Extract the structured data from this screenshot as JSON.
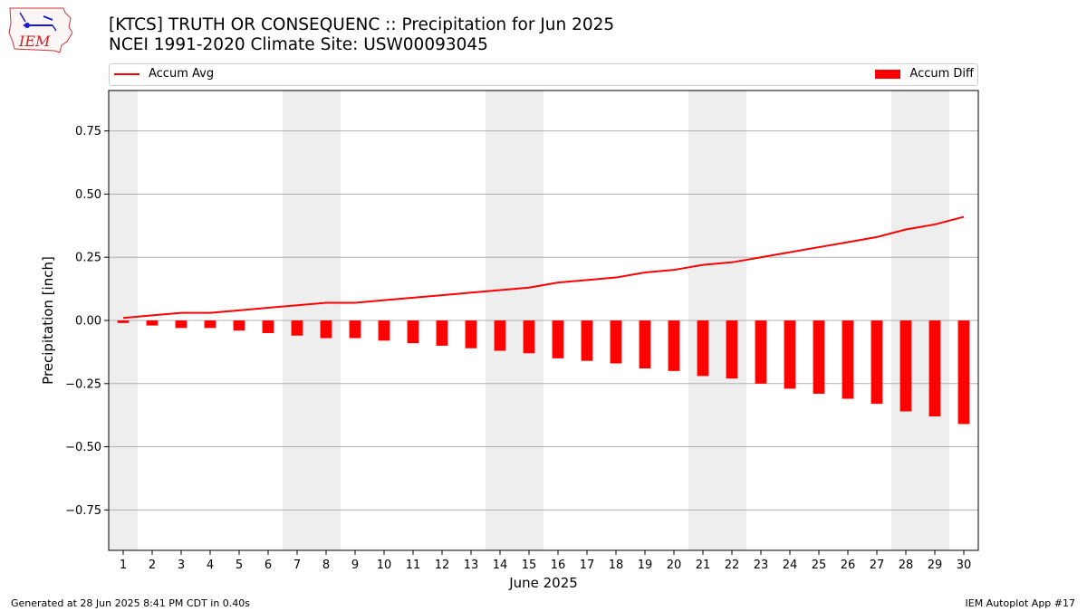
{
  "title": {
    "line1": "[KTCS] TRUTH OR CONSEQUENC :: Precipitation for Jun 2025",
    "line2": "NCEI 1991-2020 Climate Site: USW00093045"
  },
  "logo": {
    "text": "IEM",
    "icon": "iowa-state-outline-logo"
  },
  "footer": {
    "left": "Generated at 28 Jun 2025 8:41 PM CDT in 0.40s",
    "right": "IEM Autoplot App #17"
  },
  "chart_data": {
    "type": "bar",
    "xlabel": "June 2025",
    "ylabel": "Precipitation [inch]",
    "ylim": [
      -0.91,
      0.91
    ],
    "xlim": [
      0.5,
      30.5
    ],
    "yticks": [
      -0.75,
      -0.5,
      -0.25,
      0.0,
      0.25,
      0.5,
      0.75
    ],
    "ytick_labels": [
      "−0.75",
      "−0.50",
      "−0.25",
      "0.00",
      "0.25",
      "0.50",
      "0.75"
    ],
    "categories": [
      1,
      2,
      3,
      4,
      5,
      6,
      7,
      8,
      9,
      10,
      11,
      12,
      13,
      14,
      15,
      16,
      17,
      18,
      19,
      20,
      21,
      22,
      23,
      24,
      25,
      26,
      27,
      28,
      29,
      30
    ],
    "grid": "y",
    "legend_position": "top",
    "weekend_shading": [
      [
        0.5,
        1.5
      ],
      [
        6.5,
        8.5
      ],
      [
        13.5,
        15.5
      ],
      [
        20.5,
        22.5
      ],
      [
        27.5,
        29.5
      ]
    ],
    "weekend_color": "#eeeeee",
    "series": [
      {
        "name": "Accum Avg",
        "kind": "line",
        "color": "#ff0000",
        "values": [
          0.01,
          0.02,
          0.03,
          0.03,
          0.04,
          0.05,
          0.06,
          0.07,
          0.07,
          0.08,
          0.09,
          0.1,
          0.11,
          0.12,
          0.13,
          0.15,
          0.16,
          0.17,
          0.19,
          0.2,
          0.22,
          0.23,
          0.25,
          0.27,
          0.29,
          0.31,
          0.33,
          0.36,
          0.38,
          0.41
        ]
      },
      {
        "name": "Accum Diff",
        "kind": "bar",
        "color": "#ff0000",
        "values": [
          -0.01,
          -0.02,
          -0.03,
          -0.03,
          -0.04,
          -0.05,
          -0.06,
          -0.07,
          -0.07,
          -0.08,
          -0.09,
          -0.1,
          -0.11,
          -0.12,
          -0.13,
          -0.15,
          -0.16,
          -0.17,
          -0.19,
          -0.2,
          -0.22,
          -0.23,
          -0.25,
          -0.27,
          -0.29,
          -0.31,
          -0.33,
          -0.36,
          -0.38,
          -0.41
        ]
      }
    ]
  }
}
